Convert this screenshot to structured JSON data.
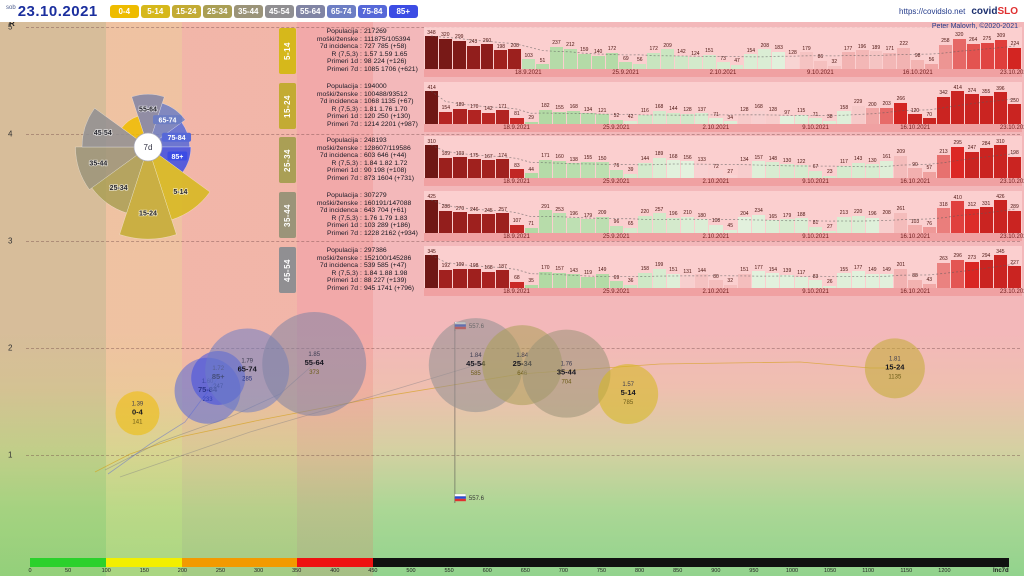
{
  "header": {
    "day": "sob",
    "date": "23.10.2021",
    "url": "https://covidslo.net",
    "brand_covid": "covid",
    "brand_slo": "SLO",
    "credit": "Peter Malovrh, ©2020-2021",
    "age_buttons": [
      {
        "label": "0-4",
        "color": "#eebc00"
      },
      {
        "label": "5-14",
        "color": "#d6b81b"
      },
      {
        "label": "15-24",
        "color": "#c3ab33"
      },
      {
        "label": "25-34",
        "color": "#aa9f55"
      },
      {
        "label": "35-44",
        "color": "#9b9479"
      },
      {
        "label": "45-54",
        "color": "#908f92"
      },
      {
        "label": "55-64",
        "color": "#8084a4"
      },
      {
        "label": "65-74",
        "color": "#6d7ec4"
      },
      {
        "label": "75-84",
        "color": "#5668d8"
      },
      {
        "label": "85+",
        "color": "#3c4ce4"
      }
    ]
  },
  "group_colors": {
    "0-4": "#eebc00",
    "5-14": "#d6b81b",
    "15-24": "#c3ab33",
    "25-34": "#aa9f55",
    "35-44": "#9b9479",
    "45-54": "#908f92",
    "55-64": "#8084a4",
    "65-74": "#6d7ec4",
    "75-84": "#5668d8",
    "85+": "#3c4ce4"
  },
  "axes": {
    "y_label": "R",
    "y_ticks": [
      5,
      4,
      3,
      2,
      1
    ],
    "x_label": "Inc7d",
    "x_ticks": [
      0,
      50,
      100,
      150,
      200,
      250,
      300,
      350,
      400,
      450,
      500,
      550,
      600,
      650,
      700,
      750,
      800,
      850,
      900,
      950,
      1000,
      1050,
      1100,
      1150,
      1200
    ]
  },
  "colorbar": [
    {
      "from": 0,
      "to": 100,
      "color": "#2cd12c"
    },
    {
      "from": 100,
      "to": 200,
      "color": "#f2ef00"
    },
    {
      "from": 200,
      "to": 350,
      "color": "#f29a00"
    },
    {
      "from": 350,
      "to": 450,
      "color": "#ee1111"
    },
    {
      "from": 450,
      "to": 1285,
      "color": "#111111"
    }
  ],
  "field_labels": [
    "Populacija",
    "moški/ženske",
    "7d incidenca",
    "R (7,5,3)",
    "Primeri 1d",
    "Primeri 7d"
  ],
  "panels": [
    {
      "group": "5-14",
      "values": [
        "217269",
        "111875/105394",
        "727 785 (+58)",
        "1.57 1.59 1.65",
        "98 224 (+126)",
        "1085 1706 (+621)"
      ]
    },
    {
      "group": "15-24",
      "values": [
        "194000",
        "100488/93512",
        "1068 1135 (+67)",
        "1.81 1.76 1.70",
        "120 250 (+130)",
        "1214 2201 (+987)"
      ]
    },
    {
      "group": "25-34",
      "values": [
        "248193",
        "128607/119586",
        "603 646 (+44)",
        "1.84 1.82 1.72",
        "90 198 (+108)",
        "873 1604 (+731)"
      ]
    },
    {
      "group": "35-44",
      "values": [
        "307279",
        "160191/147088",
        "643 704 (+61)",
        "1.76 1.79 1.83",
        "103 289 (+186)",
        "1228 2162 (+934)"
      ]
    },
    {
      "group": "45-54",
      "values": [
        "297386",
        "152100/145286",
        "539 585 (+47)",
        "1.84 1.88 1.98",
        "88 227 (+139)",
        "945 1741 (+796)"
      ]
    }
  ],
  "chart_data": [
    {
      "type": "bar",
      "name": "5-14 daily cases",
      "dates": [
        "18.9.2021",
        "25.9.2021",
        "2.10.2021",
        "9.10.2021",
        "16.10.2021",
        "23.10.2021"
      ],
      "values": [
        348,
        320,
        299,
        243,
        260,
        198,
        208,
        103,
        51,
        237,
        212,
        159,
        140,
        172,
        69,
        56,
        172,
        209,
        142,
        124,
        151,
        73,
        47,
        154,
        208,
        183,
        128,
        179,
        86,
        32,
        177,
        196,
        189,
        171,
        222,
        98,
        56,
        258,
        320,
        264,
        275,
        309,
        224
      ]
    },
    {
      "type": "bar",
      "name": "15-24 daily cases",
      "dates": [
        "18.9.2021",
        "25.9.2021",
        "2.10.2021",
        "9.10.2021",
        "16.10.2021",
        "23.10.2021"
      ],
      "values": [
        414,
        154,
        189,
        170,
        142,
        171,
        81,
        29,
        182,
        155,
        168,
        134,
        121,
        52,
        42,
        116,
        168,
        144,
        128,
        137,
        71,
        34,
        128,
        168,
        128,
        97,
        115,
        71,
        38,
        158,
        229,
        200,
        203,
        266,
        120,
        70,
        342,
        414,
        374,
        355,
        396,
        250
      ]
    },
    {
      "type": "bar",
      "name": "25-34 daily cases",
      "dates": [
        "18.9.2021",
        "25.9.2021",
        "2.10.2021",
        "9.10.2021",
        "16.10.2021",
        "23.10.2021"
      ],
      "values": [
        310,
        189,
        193,
        175,
        167,
        174,
        83,
        44,
        171,
        160,
        138,
        155,
        150,
        76,
        39,
        144,
        189,
        168,
        156,
        133,
        72,
        27,
        134,
        157,
        148,
        130,
        122,
        67,
        23,
        117,
        143,
        130,
        161,
        209,
        90,
        57,
        213,
        295,
        247,
        284,
        310,
        198
      ]
    },
    {
      "type": "bar",
      "name": "35-44 daily cases",
      "dates": [
        "18.9.2021",
        "25.9.2021",
        "2.10.2021",
        "9.10.2021",
        "16.10.2021",
        "23.10.2021"
      ],
      "values": [
        425,
        288,
        270,
        246,
        245,
        257,
        107,
        71,
        291,
        253,
        196,
        179,
        209,
        96,
        65,
        220,
        257,
        196,
        210,
        180,
        108,
        45,
        204,
        234,
        165,
        179,
        188,
        81,
        27,
        213,
        220,
        196,
        208,
        261,
        103,
        76,
        318,
        410,
        312,
        331,
        426,
        289
      ]
    },
    {
      "type": "bar",
      "name": "45-54 daily cases",
      "dates": [
        "18.9.2021",
        "25.9.2021",
        "2.10.2021",
        "9.10.2021",
        "16.10.2021",
        "23.10.2021"
      ],
      "values": [
        345,
        192,
        199,
        198,
        168,
        187,
        68,
        35,
        170,
        157,
        143,
        119,
        149,
        69,
        36,
        158,
        199,
        151,
        131,
        144,
        80,
        32,
        151,
        177,
        154,
        139,
        117,
        83,
        26,
        155,
        177,
        149,
        149,
        201,
        88,
        43,
        263,
        296,
        273,
        294,
        345,
        227
      ]
    },
    {
      "type": "pie",
      "name": "7d incidence rose",
      "center_label": "7d",
      "segments": [
        {
          "group": "55-64",
          "value": 373
        },
        {
          "group": "65-74",
          "value": 285
        },
        {
          "group": "75-84",
          "value": 233
        },
        {
          "group": "85+",
          "value": 247
        },
        {
          "group": "5-14",
          "value": 785
        },
        {
          "group": "15-24",
          "value": 1135
        },
        {
          "group": "25-34",
          "value": 646
        },
        {
          "group": "35-44",
          "value": 704
        },
        {
          "group": "45-54",
          "value": 585
        },
        {
          "group": "0-4",
          "value": 141
        }
      ]
    },
    {
      "type": "scatter",
      "name": "R vs Inc7d bubbles",
      "xlabel": "Inc7d",
      "ylabel": "R",
      "xlim": [
        0,
        1250
      ],
      "ylim": [
        0,
        5
      ],
      "points": [
        {
          "group": "0-4",
          "R": 1.39,
          "inc": 141,
          "size": 22
        },
        {
          "group": "75-84",
          "R": 1.6,
          "inc": 233,
          "size": 33
        },
        {
          "group": "85+",
          "R": 1.72,
          "inc": 247,
          "size": 27
        },
        {
          "group": "65-74",
          "R": 1.79,
          "inc": 285,
          "size": 42
        },
        {
          "group": "55-64",
          "R": 1.85,
          "inc": 373,
          "size": 52
        },
        {
          "group": "45-54",
          "R": 1.84,
          "inc": 585,
          "size": 47
        },
        {
          "group": "25-34",
          "R": 1.84,
          "inc": 646,
          "size": 40
        },
        {
          "group": "35-44",
          "R": 1.76,
          "inc": 704,
          "size": 44
        },
        {
          "group": "5-14",
          "R": 1.57,
          "inc": 785,
          "size": 30
        },
        {
          "group": "15-24",
          "R": 1.81,
          "inc": 1135,
          "size": 30
        }
      ],
      "national_marker": {
        "value": "557.6",
        "inc": 557.6
      }
    }
  ]
}
